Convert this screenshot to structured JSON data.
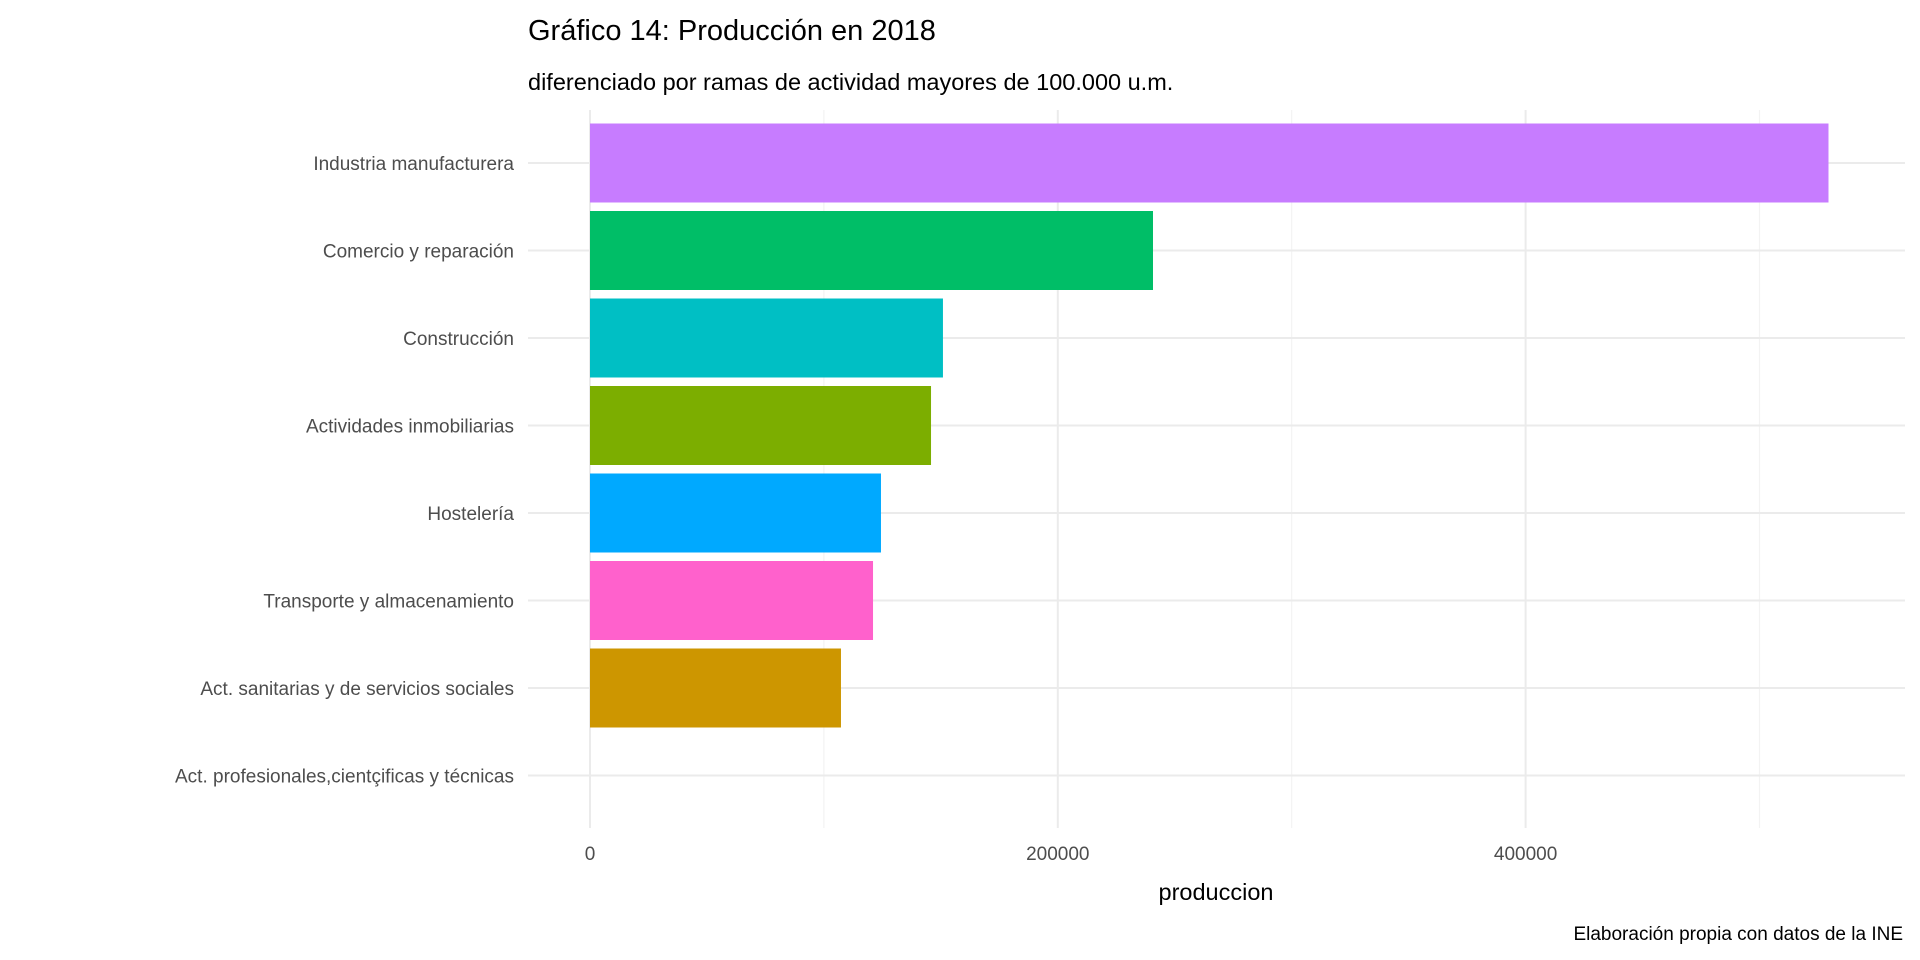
{
  "chart_data": {
    "type": "bar",
    "orientation": "horizontal",
    "title": "Gráfico 14: Producción en 2018",
    "subtitle": "diferenciado por ramas de actividad mayores de 100.000 u.m.",
    "xlabel": "produccion",
    "ylabel": "",
    "caption": "Elaboración propia con datos de la INE",
    "xlim": [
      0,
      560000
    ],
    "x_ticks": [
      0,
      200000,
      400000
    ],
    "x_tick_labels": [
      "0",
      "200000",
      "400000"
    ],
    "x_minor_ticks": [
      100000,
      300000,
      500000
    ],
    "grid": true,
    "legend": "none",
    "categories": [
      "Industria manufacturera",
      "Comercio y reparación",
      "Construcción",
      "Actividades inmobiliarias",
      "Hostelería",
      "Transporte y almacenamiento",
      "Act. sanitarias y de servicios sociales",
      "Act. profesionales,cientçificas y técnicas"
    ],
    "values": [
      529500,
      240700,
      150900,
      145800,
      124400,
      121000,
      107300,
      null
    ],
    "colors": [
      "#C77CFF",
      "#00BE67",
      "#00BFC4",
      "#7CAE00",
      "#00A9FF",
      "#FF61CC",
      "#CD9600",
      "#F8766D"
    ]
  }
}
